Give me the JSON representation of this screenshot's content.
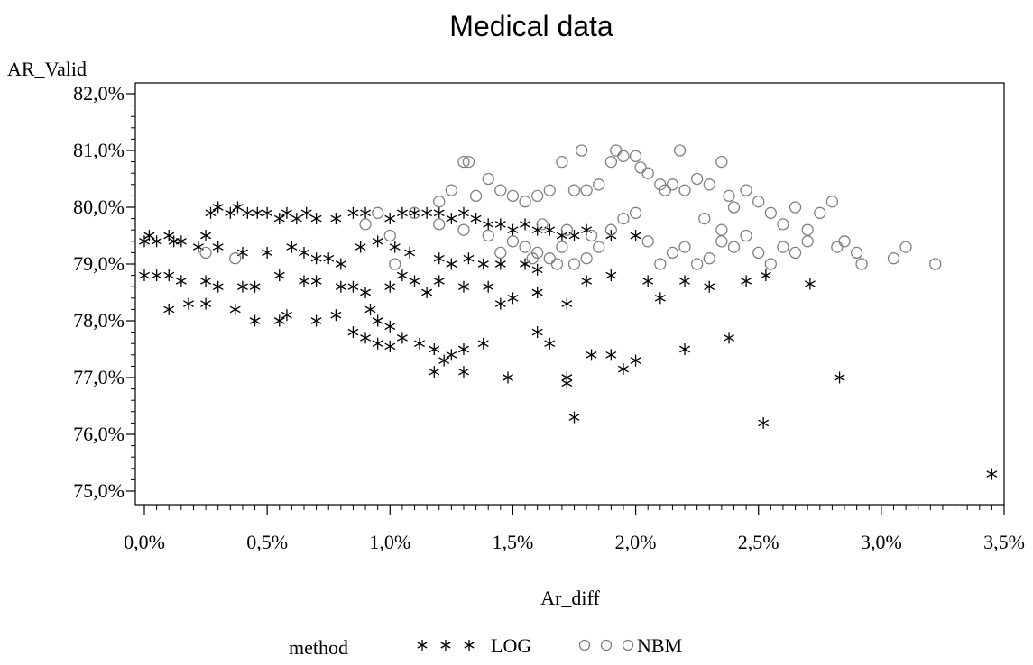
{
  "chart_data": {
    "type": "scatter",
    "title": "Medical data",
    "xlabel": "Ar_diff",
    "ylabel": "AR_Valid",
    "xlim": [
      0.0,
      3.5
    ],
    "ylim": [
      75.0,
      82.0
    ],
    "x_ticks": [
      "0,0%",
      "0,5%",
      "1,0%",
      "1,5%",
      "2,0%",
      "2,5%",
      "3,0%",
      "3,5%"
    ],
    "y_ticks": [
      "75,0%",
      "76,0%",
      "77,0%",
      "78,0%",
      "79,0%",
      "80,0%",
      "81,0%",
      "82,0%"
    ],
    "grid": false,
    "legend": {
      "title": "method",
      "position": "bottom",
      "entries": [
        "LOG",
        "NBM"
      ]
    },
    "series": [
      {
        "name": "LOG",
        "marker": "asterisk",
        "color": "#000000",
        "points": [
          [
            0.0,
            79.4
          ],
          [
            0.02,
            79.5
          ],
          [
            0.05,
            79.4
          ],
          [
            0.1,
            79.5
          ],
          [
            0.12,
            79.4
          ],
          [
            0.15,
            79.4
          ],
          [
            0.22,
            79.3
          ],
          [
            0.25,
            79.5
          ],
          [
            0.27,
            79.9
          ],
          [
            0.3,
            80.0
          ],
          [
            0.35,
            79.9
          ],
          [
            0.38,
            80.0
          ],
          [
            0.42,
            79.9
          ],
          [
            0.46,
            79.9
          ],
          [
            0.5,
            79.9
          ],
          [
            0.55,
            79.8
          ],
          [
            0.58,
            79.9
          ],
          [
            0.62,
            79.8
          ],
          [
            0.66,
            79.9
          ],
          [
            0.7,
            79.8
          ],
          [
            0.78,
            79.8
          ],
          [
            0.85,
            79.9
          ],
          [
            0.9,
            79.9
          ],
          [
            1.0,
            79.8
          ],
          [
            1.05,
            79.9
          ],
          [
            1.1,
            79.9
          ],
          [
            1.15,
            79.9
          ],
          [
            1.2,
            79.9
          ],
          [
            1.25,
            79.8
          ],
          [
            1.3,
            79.9
          ],
          [
            1.35,
            79.8
          ],
          [
            1.4,
            79.7
          ],
          [
            1.45,
            79.7
          ],
          [
            1.5,
            79.6
          ],
          [
            1.55,
            79.7
          ],
          [
            1.6,
            79.6
          ],
          [
            1.65,
            79.6
          ],
          [
            1.7,
            79.5
          ],
          [
            1.75,
            79.5
          ],
          [
            1.8,
            79.6
          ],
          [
            1.9,
            79.5
          ],
          [
            2.0,
            79.5
          ],
          [
            0.3,
            79.3
          ],
          [
            0.4,
            79.2
          ],
          [
            0.5,
            79.2
          ],
          [
            0.6,
            79.3
          ],
          [
            0.65,
            79.2
          ],
          [
            0.7,
            79.1
          ],
          [
            0.75,
            79.1
          ],
          [
            0.8,
            79.0
          ],
          [
            0.88,
            79.3
          ],
          [
            0.95,
            79.4
          ],
          [
            1.02,
            79.3
          ],
          [
            1.08,
            79.2
          ],
          [
            1.2,
            79.1
          ],
          [
            1.25,
            79.0
          ],
          [
            1.32,
            79.1
          ],
          [
            1.38,
            79.0
          ],
          [
            1.45,
            79.0
          ],
          [
            1.55,
            79.0
          ],
          [
            1.6,
            78.9
          ],
          [
            0.0,
            78.8
          ],
          [
            0.05,
            78.8
          ],
          [
            0.1,
            78.8
          ],
          [
            0.15,
            78.7
          ],
          [
            0.25,
            78.7
          ],
          [
            0.3,
            78.6
          ],
          [
            0.4,
            78.6
          ],
          [
            0.45,
            78.6
          ],
          [
            0.55,
            78.8
          ],
          [
            0.65,
            78.7
          ],
          [
            0.7,
            78.7
          ],
          [
            0.8,
            78.6
          ],
          [
            0.85,
            78.6
          ],
          [
            0.9,
            78.5
          ],
          [
            1.0,
            78.6
          ],
          [
            1.05,
            78.8
          ],
          [
            1.1,
            78.7
          ],
          [
            1.15,
            78.5
          ],
          [
            1.2,
            78.7
          ],
          [
            1.3,
            78.6
          ],
          [
            1.4,
            78.6
          ],
          [
            1.45,
            78.3
          ],
          [
            1.5,
            78.4
          ],
          [
            1.6,
            78.5
          ],
          [
            1.72,
            78.3
          ],
          [
            1.8,
            78.7
          ],
          [
            1.9,
            78.8
          ],
          [
            2.05,
            78.7
          ],
          [
            2.1,
            78.4
          ],
          [
            2.2,
            78.7
          ],
          [
            2.3,
            78.6
          ],
          [
            2.45,
            78.7
          ],
          [
            2.53,
            78.8
          ],
          [
            2.71,
            78.65
          ],
          [
            0.1,
            78.2
          ],
          [
            0.18,
            78.3
          ],
          [
            0.25,
            78.3
          ],
          [
            0.37,
            78.2
          ],
          [
            0.45,
            78.0
          ],
          [
            0.55,
            78.0
          ],
          [
            0.58,
            78.1
          ],
          [
            0.7,
            78.0
          ],
          [
            0.78,
            78.1
          ],
          [
            0.85,
            77.8
          ],
          [
            0.92,
            78.2
          ],
          [
            0.95,
            78.0
          ],
          [
            1.0,
            77.9
          ],
          [
            0.9,
            77.7
          ],
          [
            0.95,
            77.6
          ],
          [
            1.0,
            77.55
          ],
          [
            1.05,
            77.7
          ],
          [
            1.12,
            77.6
          ],
          [
            1.18,
            77.5
          ],
          [
            1.25,
            77.4
          ],
          [
            1.3,
            77.5
          ],
          [
            1.38,
            77.6
          ],
          [
            1.22,
            77.3
          ],
          [
            1.18,
            77.1
          ],
          [
            1.3,
            77.1
          ],
          [
            1.48,
            77.0
          ],
          [
            1.6,
            77.8
          ],
          [
            1.65,
            77.6
          ],
          [
            1.72,
            77.0
          ],
          [
            1.72,
            76.9
          ],
          [
            1.75,
            76.3
          ],
          [
            1.82,
            77.4
          ],
          [
            1.9,
            77.4
          ],
          [
            1.95,
            77.15
          ],
          [
            2.0,
            77.3
          ],
          [
            2.2,
            77.5
          ],
          [
            2.38,
            77.7
          ],
          [
            2.52,
            76.2
          ],
          [
            2.83,
            77.0
          ],
          [
            3.45,
            75.3
          ]
        ]
      },
      {
        "name": "NBM",
        "marker": "circle",
        "color": "#808080",
        "points": [
          [
            0.25,
            79.2
          ],
          [
            0.37,
            79.1
          ],
          [
            0.9,
            79.7
          ],
          [
            0.95,
            79.9
          ],
          [
            1.0,
            79.5
          ],
          [
            1.02,
            79.0
          ],
          [
            1.1,
            79.9
          ],
          [
            1.2,
            80.1
          ],
          [
            1.25,
            80.3
          ],
          [
            1.3,
            80.8
          ],
          [
            1.32,
            80.8
          ],
          [
            1.35,
            80.2
          ],
          [
            1.4,
            80.5
          ],
          [
            1.45,
            80.3
          ],
          [
            1.5,
            80.2
          ],
          [
            1.55,
            80.1
          ],
          [
            1.6,
            80.2
          ],
          [
            1.65,
            80.3
          ],
          [
            1.7,
            80.8
          ],
          [
            1.75,
            80.3
          ],
          [
            1.78,
            81.0
          ],
          [
            1.8,
            80.3
          ],
          [
            1.85,
            80.4
          ],
          [
            1.9,
            80.8
          ],
          [
            1.92,
            81.0
          ],
          [
            1.95,
            80.9
          ],
          [
            2.0,
            80.9
          ],
          [
            2.02,
            80.7
          ],
          [
            2.05,
            80.6
          ],
          [
            2.1,
            80.4
          ],
          [
            2.12,
            80.3
          ],
          [
            2.15,
            80.4
          ],
          [
            2.18,
            81.0
          ],
          [
            2.2,
            80.3
          ],
          [
            2.25,
            80.5
          ],
          [
            2.3,
            80.4
          ],
          [
            2.35,
            80.8
          ],
          [
            2.38,
            80.2
          ],
          [
            2.4,
            80.0
          ],
          [
            2.45,
            80.3
          ],
          [
            2.5,
            80.1
          ],
          [
            2.55,
            79.9
          ],
          [
            2.6,
            79.7
          ],
          [
            2.65,
            80.0
          ],
          [
            2.7,
            79.6
          ],
          [
            2.75,
            79.9
          ],
          [
            2.8,
            80.1
          ],
          [
            2.82,
            79.3
          ],
          [
            2.85,
            79.4
          ],
          [
            2.9,
            79.2
          ],
          [
            2.92,
            79.0
          ],
          [
            3.05,
            79.1
          ],
          [
            3.1,
            79.3
          ],
          [
            3.22,
            79.0
          ],
          [
            1.2,
            79.7
          ],
          [
            1.3,
            79.6
          ],
          [
            1.4,
            79.5
          ],
          [
            1.5,
            79.4
          ],
          [
            1.55,
            79.3
          ],
          [
            1.6,
            79.2
          ],
          [
            1.65,
            79.1
          ],
          [
            1.7,
            79.3
          ],
          [
            1.75,
            79.0
          ],
          [
            1.8,
            79.1
          ],
          [
            1.85,
            79.3
          ],
          [
            1.9,
            79.6
          ],
          [
            1.95,
            79.8
          ],
          [
            2.0,
            79.9
          ],
          [
            2.05,
            79.4
          ],
          [
            2.1,
            79.0
          ],
          [
            2.15,
            79.2
          ],
          [
            2.2,
            79.3
          ],
          [
            2.25,
            79.0
          ],
          [
            2.3,
            79.1
          ],
          [
            2.35,
            79.4
          ],
          [
            2.4,
            79.3
          ],
          [
            2.45,
            79.5
          ],
          [
            2.5,
            79.2
          ],
          [
            2.55,
            79.0
          ],
          [
            2.6,
            79.3
          ],
          [
            2.65,
            79.2
          ],
          [
            2.7,
            79.4
          ],
          [
            1.45,
            79.2
          ],
          [
            1.58,
            79.1
          ],
          [
            1.68,
            79.0
          ],
          [
            1.62,
            79.7
          ],
          [
            1.72,
            79.6
          ],
          [
            1.82,
            79.5
          ],
          [
            2.28,
            79.8
          ],
          [
            2.35,
            79.6
          ]
        ]
      }
    ]
  }
}
